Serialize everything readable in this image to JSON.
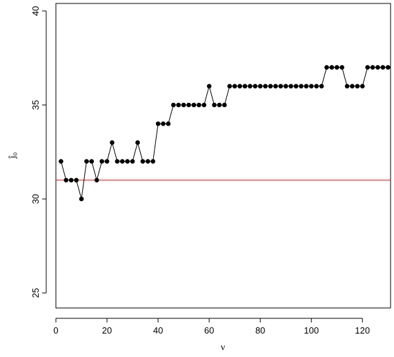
{
  "chart_data": {
    "type": "line",
    "title": "",
    "xlabel": "ν",
    "ylabel": "ĵ₀",
    "xlim": [
      0,
      131
    ],
    "ylim": [
      24.2,
      40.4
    ],
    "xticks": [
      0,
      20,
      40,
      60,
      80,
      100,
      120
    ],
    "yticks": [
      25,
      30,
      35,
      40
    ],
    "grid": false,
    "legend": "none",
    "reference_line": {
      "y": 31,
      "color": "#ff0000"
    },
    "series": [
      {
        "color": "#000000",
        "marker": "filled-circle",
        "x": [
          2,
          4,
          6,
          8,
          10,
          12,
          14,
          16,
          18,
          20,
          22,
          24,
          26,
          28,
          30,
          32,
          34,
          36,
          38,
          40,
          42,
          44,
          46,
          48,
          50,
          52,
          54,
          56,
          58,
          60,
          62,
          64,
          66,
          68,
          70,
          72,
          74,
          76,
          78,
          80,
          82,
          84,
          86,
          88,
          90,
          92,
          94,
          96,
          98,
          100,
          102,
          104,
          106,
          108,
          110,
          112,
          114,
          116,
          118,
          120,
          122,
          124,
          126,
          128,
          130
        ],
        "y": [
          32,
          31,
          31,
          31,
          30,
          32,
          32,
          31,
          32,
          32,
          33,
          32,
          32,
          32,
          32,
          33,
          32,
          32,
          32,
          34,
          34,
          34,
          35,
          35,
          35,
          35,
          35,
          35,
          35,
          36,
          35,
          35,
          35,
          36,
          36,
          36,
          36,
          36,
          36,
          36,
          36,
          36,
          36,
          36,
          36,
          36,
          36,
          36,
          36,
          36,
          36,
          36,
          37,
          37,
          37,
          37,
          36,
          36,
          36,
          36,
          37,
          37,
          37,
          37,
          37
        ]
      }
    ]
  }
}
